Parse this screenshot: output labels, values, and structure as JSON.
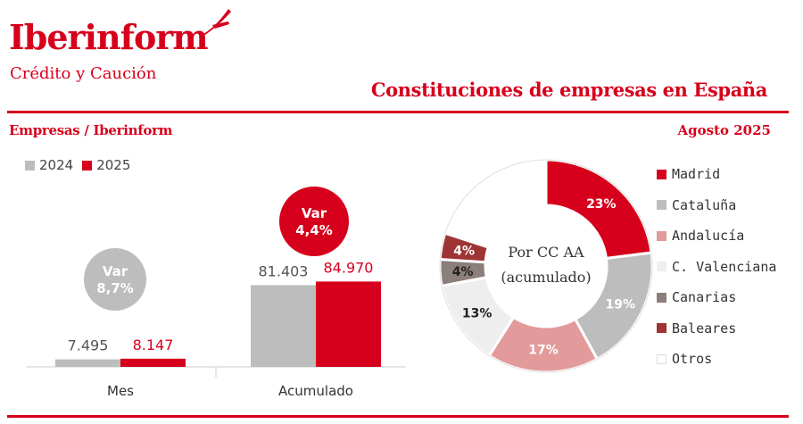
{
  "header": {
    "logo": "Iberinform",
    "logo_sub": "Crédito y Caución",
    "title": "Constituciones de empresas en España"
  },
  "section": {
    "left_title": "Empresas / Iberinform",
    "date": "Agosto 2025"
  },
  "colors": {
    "accent": "#d6001c",
    "gray": "#bdbdbd"
  },
  "chart_data": [
    {
      "type": "bar",
      "categories": [
        "Mes",
        "Acumulado"
      ],
      "series": [
        {
          "name": "2024",
          "values": [
            7495,
            81403
          ],
          "labels": [
            "7.495",
            "81.403"
          ],
          "color": "#bdbdbd"
        },
        {
          "name": "2025",
          "values": [
            8147,
            84970
          ],
          "labels": [
            "8.147",
            "84.970"
          ],
          "color": "#d6001c"
        }
      ],
      "annotations": [
        {
          "category": "Mes",
          "line1": "Var",
          "line2": "8,7%",
          "color": "#bdbdbd"
        },
        {
          "category": "Acumulado",
          "line1": "Var",
          "line2": "4,4%",
          "color": "#d6001c"
        }
      ],
      "ylim": [
        0,
        100000
      ],
      "legend": "top-left"
    },
    {
      "type": "pie",
      "center_line1": "Por CC AA",
      "center_line2": "(acumulado)",
      "slices": [
        {
          "name": "Madrid",
          "value": 23,
          "label": "23%",
          "color": "#d6001c",
          "text_color": "#ffffff"
        },
        {
          "name": "Cataluña",
          "value": 19,
          "label": "19%",
          "color": "#bdbdbd",
          "text_color": "#ffffff"
        },
        {
          "name": "Andalucía",
          "value": 17,
          "label": "17%",
          "color": "#e39a9a",
          "text_color": "#ffffff"
        },
        {
          "name": "C. Valenciana",
          "value": 13,
          "label": "13%",
          "color": "#eeeeee",
          "text_color": "#222222"
        },
        {
          "name": "Canarias",
          "value": 4,
          "label": "4%",
          "color": "#8c7e7a",
          "text_color": "#222222"
        },
        {
          "name": "Baleares",
          "value": 4,
          "label": "4%",
          "color": "#9e3434",
          "text_color": "#ffffff"
        },
        {
          "name": "Otros",
          "value": 20,
          "label": "",
          "color": "#ffffff",
          "text_color": "#222222"
        }
      ],
      "legend": "right"
    }
  ]
}
